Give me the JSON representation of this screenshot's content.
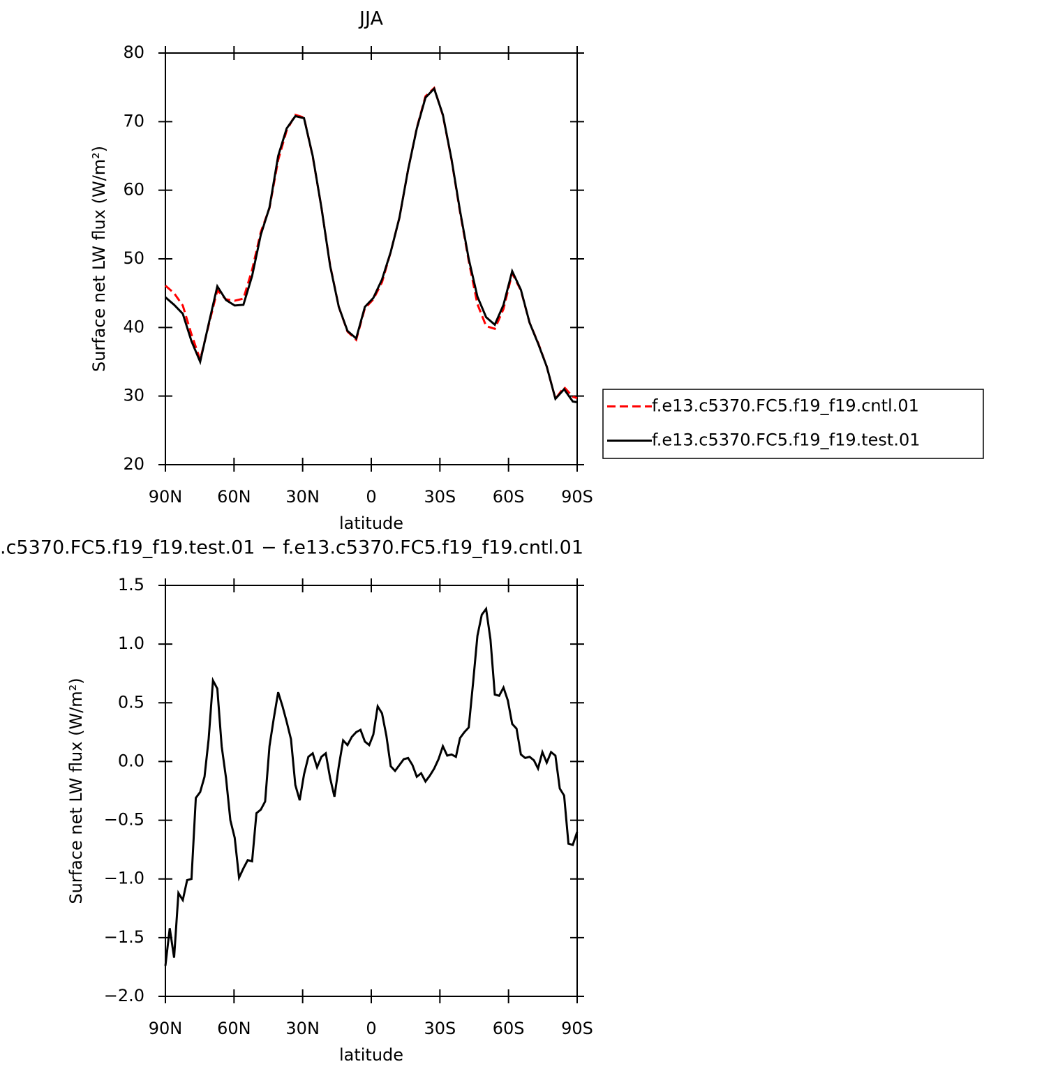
{
  "chart_data": [
    {
      "type": "line",
      "title": "JJA",
      "y_label": "Surface net LW flux (W/m²)",
      "x_label": "latitude",
      "x": [
        90,
        86.2,
        82.4,
        78.6,
        74.8,
        71.1,
        67.3,
        63.5,
        59.7,
        55.9,
        52.1,
        48.3,
        44.5,
        40.7,
        37.0,
        33.2,
        29.4,
        25.6,
        21.8,
        18.0,
        14.2,
        10.4,
        6.6,
        2.8,
        -0.9,
        -4.7,
        -8.5,
        -12.3,
        -16.1,
        -19.9,
        -23.7,
        -27.5,
        -31.3,
        -35.1,
        -38.8,
        -42.6,
        -46.4,
        -50.2,
        -54.0,
        -57.8,
        -61.6,
        -65.4,
        -69.2,
        -73.0,
        -76.7,
        -80.5,
        -84.3,
        -88.1,
        -90
      ],
      "series": [
        {
          "name": "f.e13.c5370.FC5.f19_f19.cntl.01",
          "color": "#ff0000",
          "line_style": "dashed",
          "values": [
            46.1,
            45.0,
            43.2,
            39.0,
            35.3,
            40.3,
            45.4,
            44.1,
            43.9,
            44.2,
            48.4,
            53.9,
            57.4,
            64.4,
            68.7,
            71.0,
            70.6,
            64.9,
            57.5,
            49.1,
            43.0,
            39.4,
            38.2,
            42.8,
            44.1,
            46.6,
            51.0,
            56.0,
            63.0,
            69.1,
            73.7,
            74.9,
            70.9,
            64.4,
            56.8,
            49.7,
            43.4,
            40.2,
            39.8,
            42.7,
            47.9,
            45.4,
            40.7,
            37.7,
            34.3,
            29.6,
            31.3,
            29.9,
            29.7
          ]
        },
        {
          "name": "f.e13.c5370.FC5.f19_f19.test.01",
          "color": "#000000",
          "line_style": "solid",
          "values": [
            44.4,
            43.3,
            42.0,
            38.0,
            35.0,
            40.5,
            46.0,
            44.0,
            43.2,
            43.3,
            47.5,
            53.5,
            57.5,
            65.0,
            69.0,
            70.8,
            70.5,
            65.0,
            57.5,
            49.0,
            43.0,
            39.5,
            38.4,
            43.0,
            44.3,
            47.0,
            51.0,
            56.0,
            63.0,
            69.0,
            73.5,
            74.8,
            71.0,
            64.5,
            57.0,
            50.0,
            44.5,
            41.5,
            40.4,
            43.3,
            48.2,
            45.5,
            40.7,
            37.6,
            34.3,
            29.6,
            31.0,
            29.2,
            29.1
          ]
        }
      ],
      "xlim": [
        90,
        -90
      ],
      "xticks": [
        {
          "value": 90,
          "label": "90N"
        },
        {
          "value": 60,
          "label": "60N"
        },
        {
          "value": 30,
          "label": "30N"
        },
        0,
        {
          "value": -30,
          "label": "30S"
        },
        {
          "value": -60,
          "label": "60S"
        },
        {
          "value": -90,
          "label": "90S"
        }
      ],
      "ylim": [
        20,
        80
      ],
      "yticks": [
        20,
        30,
        40,
        50,
        60,
        70,
        80
      ],
      "legend": "outside-right"
    },
    {
      "type": "line",
      "title": ".c5370.FC5.f19_f19.test.01 − f.e13.c5370.FC5.f19_f19.cntl.01",
      "y_label": "Surface net LW flux (W/m²)",
      "x_label": "latitude",
      "x": [
        90,
        88.1,
        86.2,
        84.3,
        82.4,
        80.5,
        78.6,
        76.7,
        74.8,
        72.9,
        71.1,
        69.2,
        67.3,
        65.4,
        63.5,
        61.6,
        59.7,
        57.8,
        55.9,
        54.0,
        52.1,
        50.2,
        48.3,
        46.4,
        44.5,
        42.6,
        40.7,
        38.8,
        37.0,
        35.1,
        33.2,
        31.3,
        29.4,
        27.5,
        25.6,
        23.7,
        21.8,
        19.9,
        18.0,
        16.1,
        14.2,
        12.3,
        10.4,
        8.5,
        6.6,
        4.7,
        2.8,
        0.9,
        -0.9,
        -2.8,
        -4.7,
        -6.6,
        -8.5,
        -10.4,
        -12.3,
        -14.2,
        -16.1,
        -18.0,
        -19.9,
        -21.8,
        -23.7,
        -25.6,
        -27.5,
        -29.4,
        -31.3,
        -33.2,
        -35.1,
        -37.0,
        -38.8,
        -40.7,
        -42.6,
        -44.5,
        -46.4,
        -48.3,
        -50.2,
        -52.1,
        -54.0,
        -55.9,
        -57.8,
        -59.7,
        -61.6,
        -63.5,
        -65.4,
        -67.3,
        -69.2,
        -71.1,
        -72.9,
        -74.8,
        -76.7,
        -78.6,
        -80.5,
        -82.4,
        -84.3,
        -86.2,
        -88.1,
        -90
      ],
      "series": [
        {
          "color": "#000000",
          "line_style": "solid",
          "values": [
            -1.74,
            -1.42,
            -1.67,
            -1.12,
            -1.18,
            -1.01,
            -1.0,
            -0.31,
            -0.26,
            -0.13,
            0.19,
            0.69,
            0.62,
            0.13,
            -0.14,
            -0.5,
            -0.65,
            -0.99,
            -0.91,
            -0.84,
            -0.85,
            -0.44,
            -0.41,
            -0.34,
            0.13,
            0.37,
            0.59,
            0.47,
            0.34,
            0.19,
            -0.2,
            -0.33,
            -0.11,
            0.04,
            0.07,
            -0.05,
            0.04,
            0.07,
            -0.14,
            -0.3,
            -0.04,
            0.18,
            0.14,
            0.21,
            0.25,
            0.27,
            0.17,
            0.14,
            0.23,
            0.47,
            0.41,
            0.22,
            -0.04,
            -0.08,
            -0.03,
            0.02,
            0.03,
            -0.03,
            -0.13,
            -0.1,
            -0.17,
            -0.12,
            -0.06,
            0.02,
            0.13,
            0.05,
            0.06,
            0.04,
            0.2,
            0.25,
            0.29,
            0.67,
            1.07,
            1.25,
            1.3,
            1.04,
            0.57,
            0.56,
            0.63,
            0.52,
            0.32,
            0.28,
            0.06,
            0.03,
            0.04,
            0.01,
            -0.06,
            0.08,
            -0.01,
            0.08,
            0.05,
            -0.23,
            -0.29,
            -0.7,
            -0.71,
            -0.6
          ]
        }
      ],
      "xlim": [
        90,
        -90
      ],
      "xticks": [
        {
          "value": 90,
          "label": "90N"
        },
        {
          "value": 60,
          "label": "60N"
        },
        {
          "value": 30,
          "label": "30N"
        },
        0,
        {
          "value": -30,
          "label": "30S"
        },
        {
          "value": -60,
          "label": "60S"
        },
        {
          "value": -90,
          "label": "90S"
        }
      ],
      "ylim": [
        -2,
        1.5
      ],
      "yticks": [
        {
          "value": -2,
          "label": "−2.0"
        },
        {
          "value": -1.5,
          "label": "−1.5"
        },
        {
          "value": -1,
          "label": "−1.0"
        },
        {
          "value": -0.5,
          "label": "−0.5"
        },
        {
          "value": 0,
          "label": "0.0"
        },
        0.5,
        {
          "value": 1,
          "label": "1.0"
        },
        1.5
      ]
    }
  ]
}
